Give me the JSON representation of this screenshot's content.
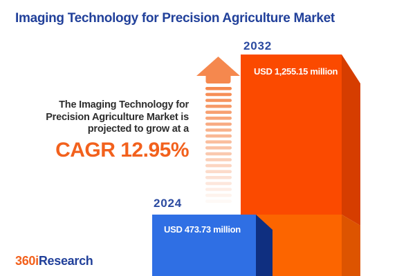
{
  "header": {
    "title": "Imaging Technology for Precision Agriculture Market"
  },
  "description": {
    "lines": [
      "The Imaging Technology for",
      "Precision Agriculture Market is",
      "projected to grow at a"
    ],
    "cagr_label": "CAGR 12.95%"
  },
  "chart": {
    "bars": [
      {
        "year": "2024",
        "value_label": "USD 473.73 million"
      },
      {
        "year": "2032",
        "value_label": "USD 1,255.15 million"
      }
    ]
  },
  "chart_data": {
    "type": "bar",
    "title": "Imaging Technology for Precision Agriculture Market",
    "categories": [
      "2024",
      "2032"
    ],
    "values": [
      473.73,
      1255.15
    ],
    "unit": "USD million",
    "data_labels": [
      "USD 473.73 million",
      "USD 1,255.15 million"
    ],
    "annotations": [
      "CAGR 12.95%",
      "The Imaging Technology for Precision Agriculture Market is projected to grow at a CAGR 12.95%"
    ],
    "legend": false,
    "grid": false,
    "style": "3d-bars, bars cropped at bottom edge, growth arrow between text and bars"
  },
  "logo": {
    "part1": "360i",
    "part2": "Research"
  },
  "colors": {
    "title_blue": "#21409A",
    "year_label_blue": "#2B4AA0",
    "cagr_orange": "#F2611D",
    "description_text": "#2D2D2D",
    "value_text": "#FFFFFF",
    "bar_2032_front": "#FB4A00",
    "bar_2032_front_lower": "#FC6500",
    "bar_2032_side": "#D63D00",
    "bar_2032_side_lower": "#DD5400",
    "bar_2024_front": "#2F6FE4",
    "bar_2024_side": "#0F2F80",
    "arrow": "#F5884E",
    "background": "#FFFFFF"
  }
}
